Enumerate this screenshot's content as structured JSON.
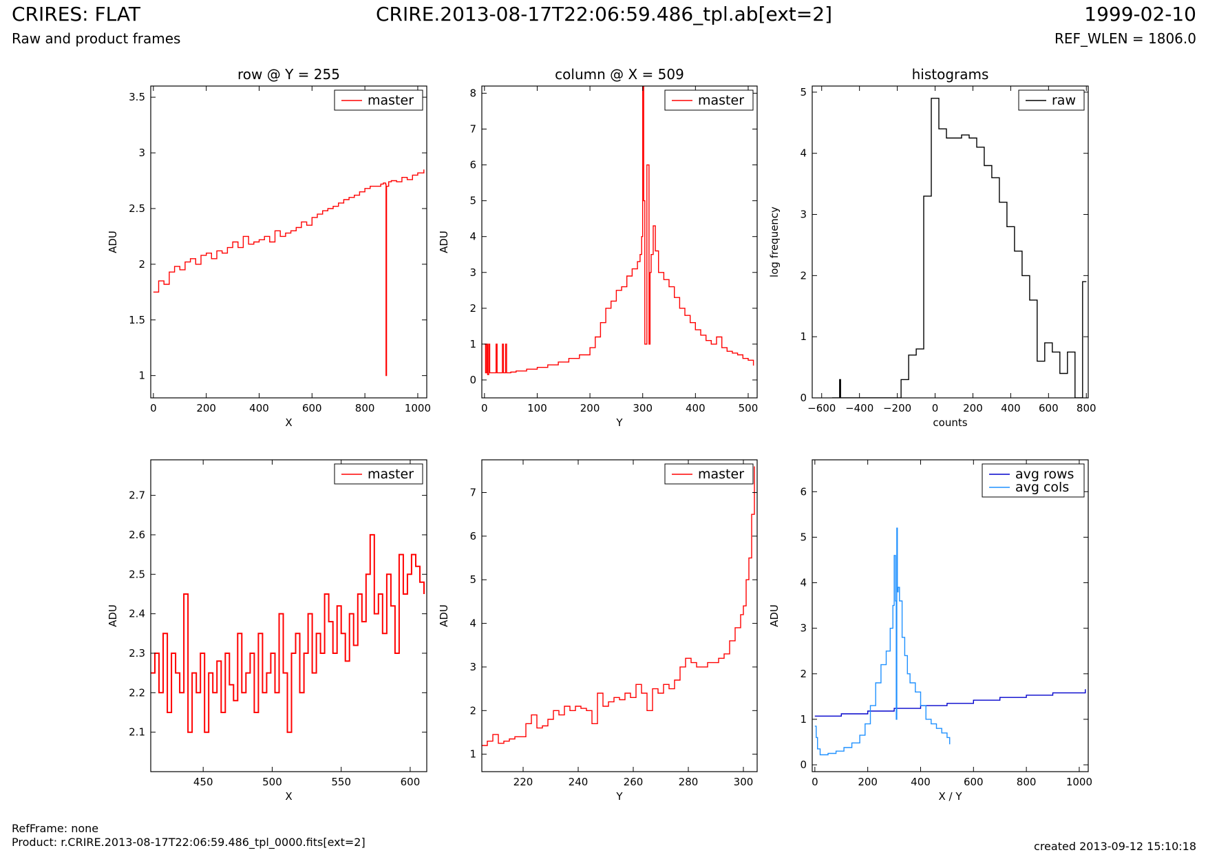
{
  "header": {
    "title": "CRIRES: FLAT",
    "subtitle": "Raw and product frames",
    "filename": "CRIRE.2013-08-17T22:06:59.486_tpl.ab[ext=2]",
    "date": "1999-02-10",
    "ref_wlen": "REF_WLEN = 1806.0"
  },
  "footer": {
    "refframe": "RefFrame: none",
    "product": "Product: r.CRIRE.2013-08-17T22:06:59.486_tpl_0000.fits[ext=2]",
    "created": "created 2013-09-12 15:10:18"
  },
  "colors": {
    "red": "#ff0000",
    "black": "#000000",
    "blue": "#0000cc",
    "lightblue": "#1e90ff"
  },
  "chart_data": [
    {
      "type": "line",
      "title": "row @ Y = 255",
      "xlabel": "X",
      "ylabel": "ADU",
      "xlim": [
        -10,
        1034
      ],
      "ylim": [
        0.8,
        3.6
      ],
      "xticks": [
        0,
        200,
        400,
        600,
        800,
        1000
      ],
      "yticks": [
        1.0,
        1.5,
        2.0,
        2.5,
        3.0,
        3.5
      ],
      "legend": "top-right",
      "series": [
        {
          "name": "master",
          "color": "#ff0000",
          "x": [
            0,
            20,
            40,
            60,
            80,
            100,
            120,
            140,
            160,
            180,
            200,
            220,
            240,
            260,
            280,
            300,
            320,
            340,
            360,
            380,
            400,
            420,
            440,
            460,
            480,
            500,
            520,
            540,
            560,
            580,
            600,
            620,
            640,
            660,
            680,
            700,
            720,
            740,
            760,
            780,
            800,
            820,
            840,
            860,
            870,
            878,
            880,
            882,
            890,
            900,
            920,
            940,
            960,
            980,
            1000,
            1023
          ],
          "y": [
            1.75,
            1.85,
            1.82,
            1.93,
            1.98,
            1.95,
            2.02,
            2.05,
            2.0,
            2.08,
            2.1,
            2.05,
            2.12,
            2.1,
            2.15,
            2.2,
            2.15,
            2.25,
            2.18,
            2.2,
            2.22,
            2.25,
            2.2,
            2.3,
            2.25,
            2.28,
            2.3,
            2.33,
            2.38,
            2.35,
            2.42,
            2.45,
            2.48,
            2.5,
            2.52,
            2.55,
            2.58,
            2.6,
            2.62,
            2.65,
            2.68,
            2.7,
            2.7,
            2.72,
            2.73,
            2.72,
            1.0,
            2.7,
            2.74,
            2.75,
            2.74,
            2.78,
            2.76,
            2.8,
            2.82,
            2.85
          ]
        }
      ]
    },
    {
      "type": "line",
      "title": "column @ X = 509",
      "xlabel": "Y",
      "ylabel": "ADU",
      "xlim": [
        -5,
        517
      ],
      "ylim": [
        -0.5,
        8.2
      ],
      "xticks": [
        0,
        100,
        200,
        300,
        400,
        500
      ],
      "yticks": [
        0,
        1,
        2,
        3,
        4,
        5,
        6,
        7,
        8
      ],
      "legend": "top-right",
      "series": [
        {
          "name": "master",
          "color": "#ff0000",
          "x": [
            0,
            2,
            4,
            6,
            8,
            10,
            12,
            20,
            22,
            24,
            30,
            34,
            36,
            40,
            42,
            50,
            60,
            80,
            100,
            120,
            140,
            160,
            180,
            200,
            210,
            220,
            230,
            240,
            250,
            260,
            270,
            280,
            290,
            295,
            298,
            300,
            302,
            304,
            306,
            308,
            312,
            314,
            316,
            320,
            324,
            330,
            340,
            350,
            360,
            370,
            380,
            390,
            400,
            410,
            420,
            430,
            440,
            450,
            460,
            470,
            480,
            490,
            500,
            510
          ],
          "y": [
            1.0,
            0.2,
            1.0,
            0.15,
            1.0,
            0.2,
            0.2,
            0.2,
            1.0,
            0.2,
            0.2,
            1.0,
            0.2,
            1.0,
            0.2,
            0.22,
            0.25,
            0.3,
            0.35,
            0.42,
            0.5,
            0.6,
            0.7,
            0.9,
            1.2,
            1.6,
            2.0,
            2.2,
            2.5,
            2.6,
            2.9,
            3.1,
            3.3,
            3.5,
            4.0,
            8.2,
            5.0,
            1.0,
            1.0,
            6.0,
            1.0,
            3.0,
            3.5,
            4.3,
            3.6,
            3.0,
            2.8,
            2.6,
            2.3,
            2.0,
            1.8,
            1.6,
            1.4,
            1.25,
            1.1,
            1.0,
            1.2,
            0.9,
            0.8,
            0.75,
            0.7,
            0.6,
            0.55,
            0.4
          ]
        }
      ]
    },
    {
      "type": "line",
      "title": "histograms",
      "xlabel": "counts",
      "ylabel": "log frequency",
      "xlim": [
        -650,
        810
      ],
      "ylim": [
        0,
        5.1
      ],
      "xticks": [
        -600,
        -400,
        -200,
        0,
        200,
        400,
        600,
        800
      ],
      "yticks": [
        0,
        1,
        2,
        3,
        4,
        5
      ],
      "legend": "top-right",
      "series": [
        {
          "name": "raw",
          "color": "#000000",
          "x": [
            -545,
            -505,
            -500,
            -460,
            -420,
            -380,
            -340,
            -300,
            -260,
            -220,
            -180,
            -140,
            -100,
            -60,
            -20,
            20,
            60,
            100,
            140,
            180,
            220,
            260,
            300,
            340,
            380,
            420,
            460,
            500,
            540,
            580,
            620,
            660,
            700,
            740,
            780,
            800
          ],
          "y": [
            0,
            0.3,
            0,
            0,
            0,
            0,
            0,
            0,
            0,
            0,
            0.3,
            0.7,
            0.8,
            3.3,
            4.9,
            4.4,
            4.25,
            4.25,
            4.3,
            4.25,
            4.1,
            3.8,
            3.6,
            3.2,
            2.8,
            2.4,
            2.0,
            1.6,
            0.6,
            0.9,
            0.75,
            0.4,
            0.75,
            0.0,
            1.9,
            1.9
          ]
        }
      ]
    },
    {
      "type": "line",
      "title": "",
      "xlabel": "X",
      "ylabel": "ADU",
      "xlim": [
        412,
        612
      ],
      "ylim": [
        2.0,
        2.79
      ],
      "xticks": [
        450,
        500,
        550,
        600
      ],
      "yticks": [
        2.1,
        2.2,
        2.3,
        2.4,
        2.5,
        2.6,
        2.7
      ],
      "legend": "top-right",
      "series": [
        {
          "name": "master",
          "color": "#ff0000",
          "x": [
            412,
            415,
            418,
            421,
            424,
            427,
            430,
            433,
            436,
            439,
            442,
            445,
            448,
            451,
            454,
            457,
            460,
            463,
            466,
            469,
            472,
            475,
            478,
            481,
            484,
            487,
            490,
            493,
            496,
            499,
            502,
            505,
            508,
            511,
            514,
            517,
            520,
            523,
            526,
            529,
            532,
            535,
            538,
            541,
            544,
            547,
            550,
            553,
            556,
            559,
            562,
            565,
            568,
            571,
            574,
            577,
            580,
            583,
            586,
            589,
            592,
            595,
            598,
            601,
            604,
            607,
            610
          ],
          "y": [
            2.25,
            2.3,
            2.2,
            2.35,
            2.15,
            2.3,
            2.25,
            2.2,
            2.45,
            2.1,
            2.25,
            2.2,
            2.3,
            2.1,
            2.25,
            2.2,
            2.28,
            2.15,
            2.3,
            2.22,
            2.18,
            2.35,
            2.2,
            2.25,
            2.3,
            2.15,
            2.35,
            2.2,
            2.25,
            2.3,
            2.2,
            2.4,
            2.25,
            2.1,
            2.3,
            2.35,
            2.2,
            2.3,
            2.4,
            2.25,
            2.35,
            2.3,
            2.45,
            2.38,
            2.3,
            2.42,
            2.35,
            2.28,
            2.4,
            2.32,
            2.45,
            2.38,
            2.5,
            2.6,
            2.4,
            2.45,
            2.35,
            2.5,
            2.42,
            2.3,
            2.55,
            2.45,
            2.5,
            2.55,
            2.52,
            2.48,
            2.45
          ]
        }
      ]
    },
    {
      "type": "line",
      "title": "",
      "xlabel": "Y",
      "ylabel": "ADU",
      "xlim": [
        205,
        305
      ],
      "ylim": [
        0.6,
        7.75
      ],
      "xticks": [
        220,
        240,
        260,
        280,
        300
      ],
      "yticks": [
        1,
        2,
        3,
        4,
        5,
        6,
        7
      ],
      "legend": "top-right",
      "series": [
        {
          "name": "master",
          "color": "#ff0000",
          "x": [
            205,
            207,
            209,
            211,
            213,
            215,
            217,
            219,
            221,
            223,
            225,
            227,
            229,
            231,
            233,
            235,
            237,
            239,
            241,
            243,
            245,
            247,
            249,
            251,
            253,
            255,
            257,
            259,
            261,
            263,
            265,
            267,
            269,
            271,
            273,
            275,
            277,
            279,
            281,
            283,
            285,
            287,
            289,
            291,
            293,
            295,
            297,
            299,
            300,
            301,
            302,
            303,
            304
          ],
          "y": [
            1.2,
            1.3,
            1.45,
            1.25,
            1.3,
            1.35,
            1.4,
            1.4,
            1.7,
            1.9,
            1.6,
            1.65,
            1.8,
            2.0,
            1.9,
            2.1,
            2.0,
            2.1,
            2.05,
            2.0,
            1.7,
            2.4,
            2.1,
            2.2,
            2.3,
            2.25,
            2.4,
            2.3,
            2.6,
            2.4,
            2.0,
            2.5,
            2.4,
            2.6,
            2.5,
            2.7,
            3.0,
            3.2,
            3.1,
            3.0,
            3.0,
            3.1,
            3.1,
            3.2,
            3.3,
            3.6,
            3.9,
            4.2,
            4.4,
            5.0,
            5.5,
            6.5,
            7.6
          ]
        }
      ]
    },
    {
      "type": "line",
      "title": "",
      "xlabel": "X / Y",
      "ylabel": "ADU",
      "xlim": [
        -10,
        1034
      ],
      "ylim": [
        -0.15,
        6.7
      ],
      "xticks": [
        0,
        200,
        400,
        600,
        800,
        1000
      ],
      "yticks": [
        0,
        1,
        2,
        3,
        4,
        5,
        6
      ],
      "legend": "top-right",
      "series": [
        {
          "name": "avg rows",
          "color": "#0000cc",
          "x": [
            0,
            100,
            200,
            300,
            400,
            500,
            600,
            700,
            800,
            900,
            1023
          ],
          "y": [
            1.07,
            1.12,
            1.18,
            1.24,
            1.3,
            1.35,
            1.42,
            1.48,
            1.53,
            1.58,
            1.66
          ]
        },
        {
          "name": "avg cols",
          "color": "#1e90ff",
          "x": [
            0,
            5,
            10,
            20,
            30,
            50,
            80,
            110,
            140,
            170,
            190,
            210,
            230,
            250,
            270,
            285,
            295,
            300,
            305,
            308,
            310,
            312,
            315,
            320,
            330,
            340,
            350,
            360,
            380,
            400,
            420,
            440,
            460,
            480,
            500,
            510
          ],
          "y": [
            0.85,
            0.6,
            0.35,
            0.22,
            0.22,
            0.25,
            0.3,
            0.38,
            0.48,
            0.65,
            0.9,
            1.3,
            1.8,
            2.2,
            2.5,
            3.0,
            3.5,
            4.6,
            3.6,
            1.0,
            5.2,
            3.8,
            3.9,
            3.6,
            2.8,
            2.4,
            2.0,
            1.8,
            1.6,
            1.3,
            1.0,
            0.9,
            0.8,
            0.7,
            0.6,
            0.45
          ]
        }
      ]
    }
  ]
}
